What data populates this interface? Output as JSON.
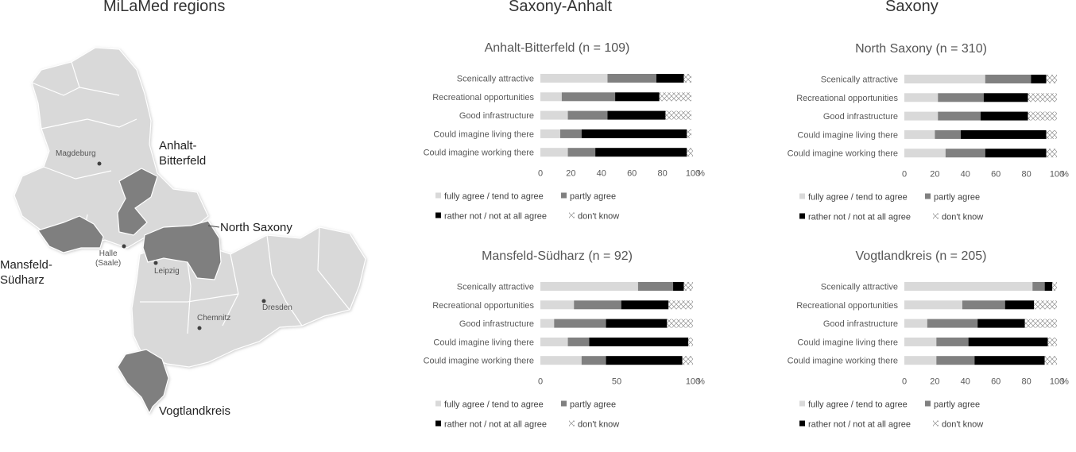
{
  "headers": {
    "map_title": "MiLaMed regions",
    "saxony_anhalt": "Saxony-Anhalt",
    "saxony": "Saxony"
  },
  "map": {
    "regions": {
      "anhalt_bitterfeld": "Anhalt-\nBitterfeld",
      "north_saxony": "North Saxony",
      "mansfeld_suedharz": "Mansfeld-\nSüdharz",
      "vogtlandkreis": "Vogtlandkreis"
    },
    "cities": {
      "magdeburg": "Magdeburg",
      "halle": "Halle\n(Saale)",
      "leipzig": "Leipzig",
      "dresden": "Dresden",
      "chemnitz": "Chemnitz"
    }
  },
  "colors": {
    "agree": "#d9d9d9",
    "partly": "#808080",
    "not_agree": "#000000",
    "dont_know": "#ffffff",
    "highlight_region": "#7f7f7f",
    "other_region": "#d9d9d9"
  },
  "chart_data": [
    {
      "type": "bar",
      "stacked": true,
      "orientation": "horizontal",
      "title": "Anhalt-Bitterfeld (n = 109)",
      "categories": [
        "Scenically attractive",
        "Recreational opportunities",
        "Good infrastructure",
        "Could imagine living there",
        "Could imagine working there"
      ],
      "series": [
        {
          "name": "fully agree / tend to agree",
          "values": [
            44,
            14,
            18,
            13,
            18
          ]
        },
        {
          "name": "partly agree",
          "values": [
            32,
            35,
            26,
            14,
            18
          ]
        },
        {
          "name": "rather not / not at all agree",
          "values": [
            18,
            29,
            38,
            69,
            60
          ]
        },
        {
          "name": "don't know",
          "values": [
            5,
            21,
            17,
            3,
            4
          ]
        }
      ],
      "xlim": [
        0,
        100
      ],
      "xticks": [
        "0",
        "20",
        "40",
        "60",
        "80",
        "100"
      ],
      "xunit": "%",
      "legend": "bottom"
    },
    {
      "type": "bar",
      "stacked": true,
      "orientation": "horizontal",
      "title": "North Saxony (n = 310)",
      "categories": [
        "Scenically attractive",
        "Recreational opportunities",
        "Good infrastructure",
        "Could imagine living there",
        "Could imagine working there"
      ],
      "series": [
        {
          "name": "fully agree / tend to agree",
          "values": [
            53,
            22,
            22,
            20,
            27
          ]
        },
        {
          "name": "partly agree",
          "values": [
            30,
            30,
            28,
            17,
            26
          ]
        },
        {
          "name": "rather not / not at all agree",
          "values": [
            10,
            29,
            31,
            56,
            40
          ]
        },
        {
          "name": "don't know",
          "values": [
            7,
            19,
            19,
            7,
            7
          ]
        }
      ],
      "xlim": [
        0,
        100
      ],
      "xticks": [
        "0",
        "20",
        "40",
        "60",
        "80",
        "100"
      ],
      "xunit": "%",
      "legend": "bottom"
    },
    {
      "type": "bar",
      "stacked": true,
      "orientation": "horizontal",
      "title": "Mansfeld-Südharz (n = 92)",
      "categories": [
        "Scenically attractive",
        "Recreational opportunities",
        "Good infrastructure",
        "Could imagine living there",
        "Could imagine working there"
      ],
      "series": [
        {
          "name": "fully agree / tend to agree",
          "values": [
            64,
            22,
            9,
            18,
            27
          ]
        },
        {
          "name": "partly agree",
          "values": [
            23,
            31,
            34,
            14,
            16
          ]
        },
        {
          "name": "rather not / not at all agree",
          "values": [
            7,
            31,
            40,
            65,
            50
          ]
        },
        {
          "name": "don't know",
          "values": [
            6,
            16,
            17,
            3,
            7
          ]
        }
      ],
      "xlim": [
        0,
        100
      ],
      "xticks": [
        "0",
        "50",
        "100"
      ],
      "xunit": "%",
      "legend": "bottom"
    },
    {
      "type": "bar",
      "stacked": true,
      "orientation": "horizontal",
      "title": "Vogtlandkreis (n = 205)",
      "categories": [
        "Scenically attractive",
        "Recreational opportunities",
        "Good infrastructure",
        "Could imagine living there",
        "Could imagine working there"
      ],
      "series": [
        {
          "name": "fully agree / tend to agree",
          "values": [
            84,
            38,
            15,
            21,
            21
          ]
        },
        {
          "name": "partly agree",
          "values": [
            8,
            28,
            33,
            21,
            25
          ]
        },
        {
          "name": "rather not / not at all agree",
          "values": [
            5,
            19,
            31,
            52,
            46
          ]
        },
        {
          "name": "don't know",
          "values": [
            3,
            15,
            21,
            6,
            8
          ]
        }
      ],
      "xlim": [
        0,
        100
      ],
      "xticks": [
        "0",
        "20",
        "40",
        "60",
        "80",
        "100"
      ],
      "xunit": "%",
      "legend": "bottom"
    }
  ]
}
